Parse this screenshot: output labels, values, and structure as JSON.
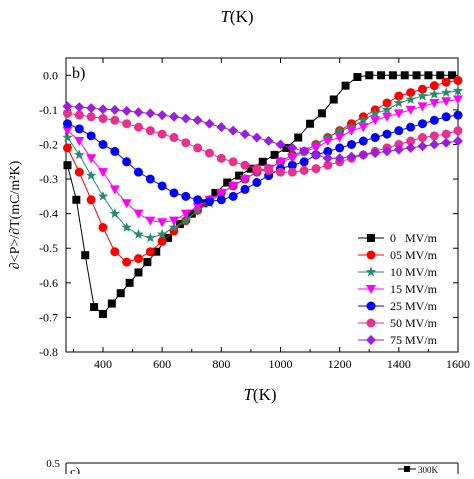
{
  "top_fragment": {
    "axis_label_italic": "T",
    "axis_label_unit": "(K)"
  },
  "bottom_fragment": {
    "panel_letter": "c)",
    "ytick": "0.5",
    "legend_first": "300K"
  },
  "chart_data": {
    "type": "line",
    "panel_label": "b)",
    "xlabel": {
      "italic": "T",
      "unit": "(K)"
    },
    "ylabel": {
      "text": "∂<P>/∂T(mC/m²K)"
    },
    "xlim": [
      275,
      1600
    ],
    "ylim": [
      -0.8,
      0.05
    ],
    "xticks": [
      400,
      600,
      800,
      1000,
      1200,
      1400,
      1600
    ],
    "yticks": [
      0.0,
      -0.1,
      -0.2,
      -0.3,
      -0.4,
      -0.5,
      -0.6,
      -0.7,
      -0.8
    ],
    "ytick_labels": [
      "0.0",
      "-0.1",
      "-0.2",
      "-0.3",
      "-0.4",
      "-0.5",
      "-0.6",
      "-0.7",
      "-0.8"
    ],
    "grid": false,
    "legend_position": "bottom-right",
    "series": [
      {
        "name": "0   MV/m",
        "color": "#000000",
        "marker": "square",
        "x": [
          280,
          310,
          340,
          370,
          400,
          430,
          460,
          490,
          520,
          550,
          580,
          620,
          660,
          700,
          740,
          780,
          820,
          860,
          900,
          940,
          980,
          1020,
          1060,
          1100,
          1140,
          1180,
          1220,
          1260,
          1300,
          1340,
          1380,
          1420,
          1460,
          1500,
          1540,
          1580
        ],
        "y": [
          -0.26,
          -0.36,
          -0.52,
          -0.67,
          -0.69,
          -0.66,
          -0.63,
          -0.6,
          -0.57,
          -0.54,
          -0.51,
          -0.47,
          -0.43,
          -0.4,
          -0.37,
          -0.34,
          -0.31,
          -0.29,
          -0.27,
          -0.25,
          -0.23,
          -0.21,
          -0.18,
          -0.14,
          -0.11,
          -0.07,
          -0.03,
          -0.005,
          0.0,
          0.0,
          0.0,
          0.0,
          0.0,
          0.0,
          0.0,
          0.0
        ]
      },
      {
        "name": "05 MV/m",
        "color": "#ff0000",
        "marker": "circle",
        "x": [
          280,
          320,
          360,
          400,
          440,
          480,
          520,
          560,
          600,
          640,
          680,
          720,
          760,
          800,
          840,
          880,
          920,
          960,
          1000,
          1040,
          1080,
          1120,
          1160,
          1200,
          1240,
          1280,
          1320,
          1360,
          1400,
          1440,
          1480,
          1520,
          1560,
          1600
        ],
        "y": [
          -0.21,
          -0.28,
          -0.36,
          -0.44,
          -0.51,
          -0.54,
          -0.53,
          -0.51,
          -0.48,
          -0.45,
          -0.42,
          -0.39,
          -0.36,
          -0.34,
          -0.32,
          -0.3,
          -0.28,
          -0.27,
          -0.25,
          -0.23,
          -0.22,
          -0.2,
          -0.18,
          -0.16,
          -0.14,
          -0.12,
          -0.1,
          -0.08,
          -0.06,
          -0.05,
          -0.04,
          -0.03,
          -0.02,
          -0.015
        ]
      },
      {
        "name": "10 MV/m",
        "color": "#2a8a6e",
        "marker": "star",
        "x": [
          280,
          320,
          360,
          400,
          440,
          480,
          520,
          560,
          600,
          640,
          680,
          720,
          760,
          800,
          840,
          880,
          920,
          960,
          1000,
          1040,
          1080,
          1120,
          1160,
          1200,
          1240,
          1280,
          1320,
          1360,
          1400,
          1440,
          1480,
          1520,
          1560,
          1600
        ],
        "y": [
          -0.18,
          -0.23,
          -0.29,
          -0.35,
          -0.4,
          -0.44,
          -0.46,
          -0.47,
          -0.46,
          -0.44,
          -0.42,
          -0.39,
          -0.37,
          -0.34,
          -0.32,
          -0.3,
          -0.28,
          -0.27,
          -0.25,
          -0.23,
          -0.22,
          -0.2,
          -0.18,
          -0.16,
          -0.15,
          -0.13,
          -0.11,
          -0.1,
          -0.08,
          -0.07,
          -0.06,
          -0.055,
          -0.05,
          -0.045
        ]
      },
      {
        "name": "15 MV/m",
        "color": "#ff00ff",
        "marker": "triangle-down",
        "x": [
          280,
          320,
          360,
          400,
          440,
          480,
          520,
          560,
          600,
          640,
          680,
          720,
          760,
          800,
          840,
          880,
          920,
          960,
          1000,
          1040,
          1080,
          1120,
          1160,
          1200,
          1240,
          1280,
          1320,
          1360,
          1400,
          1440,
          1480,
          1520,
          1560,
          1600
        ],
        "y": [
          -0.16,
          -0.19,
          -0.24,
          -0.28,
          -0.33,
          -0.37,
          -0.4,
          -0.42,
          -0.425,
          -0.42,
          -0.4,
          -0.38,
          -0.36,
          -0.34,
          -0.32,
          -0.3,
          -0.28,
          -0.27,
          -0.25,
          -0.24,
          -0.22,
          -0.21,
          -0.19,
          -0.18,
          -0.16,
          -0.15,
          -0.13,
          -0.12,
          -0.11,
          -0.1,
          -0.09,
          -0.08,
          -0.075,
          -0.07
        ]
      },
      {
        "name": "25 MV/m",
        "color": "#0000ff",
        "marker": "circle",
        "x": [
          280,
          320,
          360,
          400,
          440,
          480,
          520,
          560,
          600,
          640,
          680,
          720,
          760,
          800,
          840,
          880,
          920,
          960,
          1000,
          1040,
          1080,
          1120,
          1160,
          1200,
          1240,
          1280,
          1320,
          1360,
          1400,
          1440,
          1480,
          1520,
          1560,
          1600
        ],
        "y": [
          -0.14,
          -0.155,
          -0.175,
          -0.2,
          -0.22,
          -0.25,
          -0.28,
          -0.3,
          -0.32,
          -0.34,
          -0.35,
          -0.36,
          -0.365,
          -0.36,
          -0.35,
          -0.33,
          -0.31,
          -0.29,
          -0.27,
          -0.26,
          -0.25,
          -0.23,
          -0.22,
          -0.21,
          -0.2,
          -0.19,
          -0.18,
          -0.17,
          -0.16,
          -0.15,
          -0.14,
          -0.13,
          -0.12,
          -0.115
        ]
      },
      {
        "name": "50 MV/m",
        "color": "#e8308e",
        "marker": "circle",
        "x": [
          280,
          320,
          360,
          400,
          440,
          480,
          520,
          560,
          600,
          640,
          680,
          720,
          760,
          800,
          840,
          880,
          920,
          960,
          1000,
          1040,
          1080,
          1120,
          1160,
          1200,
          1240,
          1280,
          1320,
          1360,
          1400,
          1440,
          1480,
          1520,
          1560,
          1600
        ],
        "y": [
          -0.11,
          -0.115,
          -0.12,
          -0.125,
          -0.13,
          -0.14,
          -0.15,
          -0.16,
          -0.17,
          -0.18,
          -0.195,
          -0.21,
          -0.225,
          -0.24,
          -0.25,
          -0.26,
          -0.27,
          -0.275,
          -0.28,
          -0.28,
          -0.275,
          -0.27,
          -0.26,
          -0.25,
          -0.24,
          -0.23,
          -0.22,
          -0.21,
          -0.2,
          -0.19,
          -0.18,
          -0.175,
          -0.17,
          -0.16
        ]
      },
      {
        "name": "75 MV/m",
        "color": "#9a1ee0",
        "marker": "diamond",
        "x": [
          280,
          320,
          360,
          400,
          440,
          480,
          520,
          560,
          600,
          640,
          680,
          720,
          760,
          800,
          840,
          880,
          920,
          960,
          1000,
          1040,
          1080,
          1120,
          1160,
          1200,
          1240,
          1280,
          1320,
          1360,
          1400,
          1440,
          1480,
          1520,
          1560,
          1600
        ],
        "y": [
          -0.09,
          -0.092,
          -0.095,
          -0.098,
          -0.1,
          -0.103,
          -0.107,
          -0.11,
          -0.115,
          -0.12,
          -0.125,
          -0.13,
          -0.14,
          -0.15,
          -0.16,
          -0.17,
          -0.18,
          -0.19,
          -0.2,
          -0.21,
          -0.22,
          -0.23,
          -0.24,
          -0.24,
          -0.235,
          -0.23,
          -0.225,
          -0.22,
          -0.215,
          -0.21,
          -0.205,
          -0.2,
          -0.195,
          -0.19
        ]
      }
    ]
  }
}
